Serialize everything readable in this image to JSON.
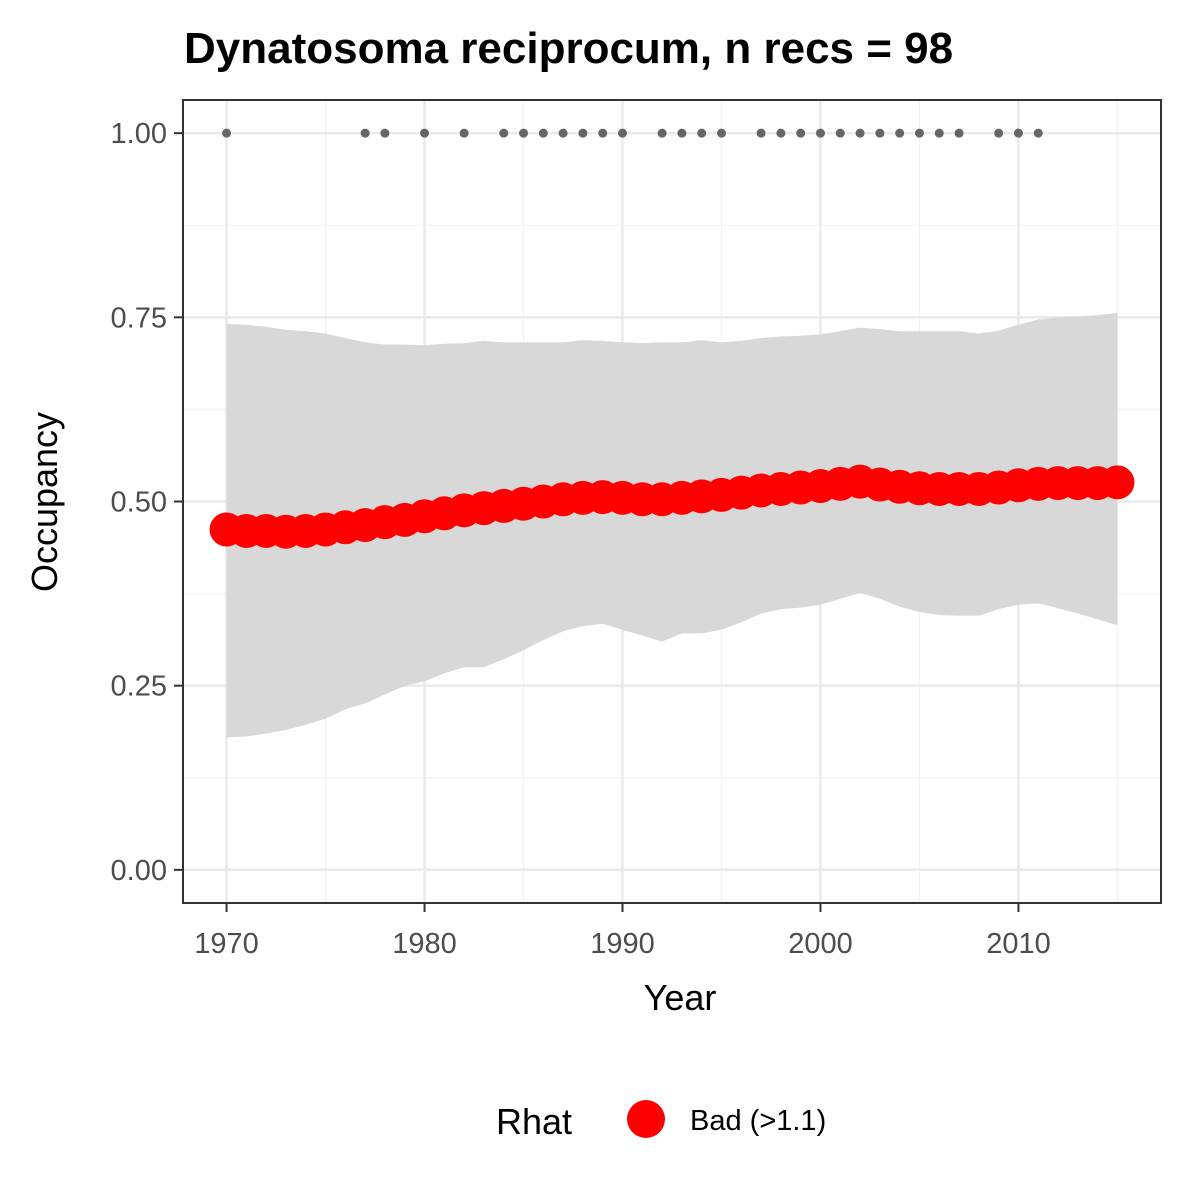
{
  "chart_data": {
    "type": "line",
    "title": "Dynatosoma reciprocum, n recs = 98",
    "xlabel": "Year",
    "ylabel": "Occupancy",
    "xlim": [
      1967.8,
      2017.2
    ],
    "ylim": [
      -0.045,
      1.045
    ],
    "x_ticks": [
      "1970",
      "1980",
      "1990",
      "2000",
      "2010"
    ],
    "x_tick_values": [
      1970,
      1980,
      1990,
      2000,
      2010
    ],
    "y_ticks": [
      "0.00",
      "0.25",
      "0.50",
      "0.75",
      "1.00"
    ],
    "y_tick_values": [
      0,
      0.25,
      0.5,
      0.75,
      1.0
    ],
    "grid": true,
    "legend": {
      "title": "Rhat",
      "position": "bottom",
      "entries": [
        {
          "label": "Bad (>1.1)",
          "color": "#ff0000"
        }
      ]
    },
    "series": [
      {
        "name": "Bad (>1.1)",
        "color": "#ff0000",
        "x": [
          1970,
          1971,
          1972,
          1973,
          1974,
          1975,
          1976,
          1977,
          1978,
          1979,
          1980,
          1981,
          1982,
          1983,
          1984,
          1985,
          1986,
          1987,
          1988,
          1989,
          1990,
          1991,
          1992,
          1993,
          1994,
          1995,
          1996,
          1997,
          1998,
          1999,
          2000,
          2001,
          2002,
          2003,
          2004,
          2005,
          2006,
          2007,
          2008,
          2009,
          2010,
          2011,
          2012,
          2013,
          2014,
          2015
        ],
        "y": [
          0.462,
          0.46,
          0.46,
          0.459,
          0.46,
          0.462,
          0.465,
          0.468,
          0.472,
          0.475,
          0.48,
          0.484,
          0.488,
          0.491,
          0.494,
          0.497,
          0.5,
          0.503,
          0.505,
          0.506,
          0.505,
          0.503,
          0.503,
          0.505,
          0.507,
          0.509,
          0.512,
          0.515,
          0.517,
          0.519,
          0.521,
          0.524,
          0.527,
          0.523,
          0.52,
          0.518,
          0.517,
          0.517,
          0.517,
          0.519,
          0.522,
          0.524,
          0.525,
          0.525,
          0.525,
          0.526
        ]
      }
    ],
    "ribbon": {
      "color": "#d6d6d6",
      "x": [
        1970,
        1971,
        1972,
        1973,
        1974,
        1975,
        1976,
        1977,
        1978,
        1979,
        1980,
        1981,
        1982,
        1983,
        1984,
        1985,
        1986,
        1987,
        1988,
        1989,
        1990,
        1991,
        1992,
        1993,
        1994,
        1995,
        1996,
        1997,
        1998,
        1999,
        2000,
        2001,
        2002,
        2003,
        2004,
        2005,
        2006,
        2007,
        2008,
        2009,
        2010,
        2011,
        2012,
        2013,
        2014,
        2015
      ],
      "upper": [
        0.741,
        0.74,
        0.737,
        0.733,
        0.731,
        0.728,
        0.722,
        0.716,
        0.713,
        0.713,
        0.712,
        0.714,
        0.715,
        0.718,
        0.716,
        0.716,
        0.716,
        0.716,
        0.719,
        0.718,
        0.716,
        0.715,
        0.716,
        0.716,
        0.719,
        0.716,
        0.718,
        0.722,
        0.724,
        0.725,
        0.727,
        0.731,
        0.736,
        0.734,
        0.731,
        0.731,
        0.731,
        0.731,
        0.728,
        0.732,
        0.74,
        0.747,
        0.75,
        0.751,
        0.753,
        0.756
      ],
      "lower": [
        0.18,
        0.181,
        0.185,
        0.19,
        0.197,
        0.205,
        0.218,
        0.226,
        0.238,
        0.25,
        0.256,
        0.267,
        0.275,
        0.275,
        0.286,
        0.298,
        0.312,
        0.324,
        0.331,
        0.334,
        0.326,
        0.318,
        0.31,
        0.321,
        0.321,
        0.326,
        0.336,
        0.348,
        0.354,
        0.356,
        0.36,
        0.368,
        0.376,
        0.368,
        0.357,
        0.35,
        0.346,
        0.345,
        0.345,
        0.354,
        0.36,
        0.362,
        0.355,
        0.348,
        0.34,
        0.332
      ]
    },
    "records": {
      "color": "#666666",
      "y": 1.0,
      "x": [
        1970,
        1977,
        1978,
        1980,
        1982,
        1984,
        1985,
        1986,
        1987,
        1988,
        1989,
        1990,
        1992,
        1993,
        1994,
        1995,
        1997,
        1998,
        1999,
        2000,
        2001,
        2002,
        2003,
        2004,
        2005,
        2006,
        2007,
        2009,
        2010,
        2011
      ]
    }
  }
}
